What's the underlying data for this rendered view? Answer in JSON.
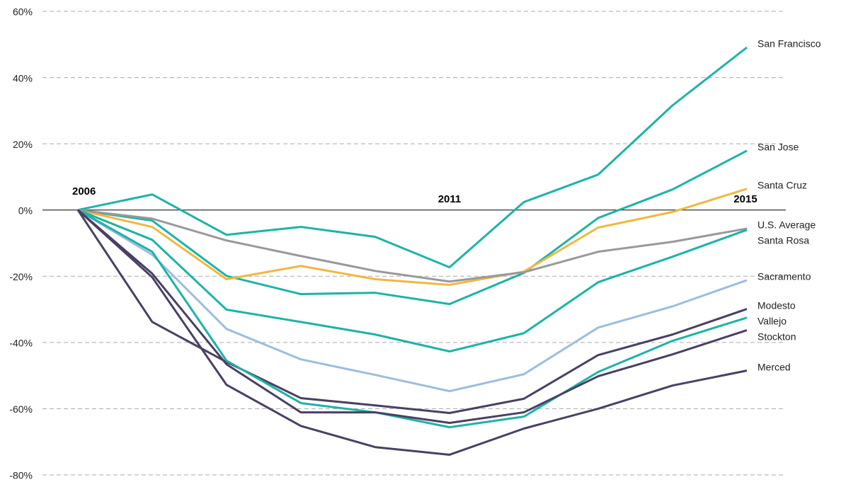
{
  "chart_data": {
    "type": "line",
    "x": [
      2006,
      2007,
      2008,
      2009,
      2010,
      2011,
      2012,
      2013,
      2014,
      2015
    ],
    "xlim": [
      2006,
      2015
    ],
    "xticks": [
      2006,
      2011,
      2015
    ],
    "ylim": [
      -80,
      60
    ],
    "yticks": [
      {
        "value": -80,
        "label": "-80%"
      },
      {
        "value": -60,
        "label": "-60%"
      },
      {
        "value": -40,
        "label": "-40%"
      },
      {
        "value": -20,
        "label": "-20%"
      },
      {
        "value": 0,
        "label": "0%"
      },
      {
        "value": 20,
        "label": "20%"
      },
      {
        "value": 40,
        "label": "40%"
      },
      {
        "value": 60,
        "label": "60%"
      }
    ],
    "grid": true,
    "series": [
      {
        "name": "San Francisco",
        "color": "#1db3a6",
        "values": [
          0,
          4.7,
          -7.5,
          -5.1,
          -8.1,
          -17.3,
          2.4,
          10.7,
          31.6,
          49.1
        ]
      },
      {
        "name": "San Jose",
        "color": "#1db3a6",
        "values": [
          0,
          -3.2,
          -19.9,
          -25.4,
          -25,
          -28.4,
          -19,
          -2.4,
          6.2,
          17.9
        ]
      },
      {
        "name": "Santa Cruz",
        "color": "#f0b840",
        "values": [
          0,
          -5.1,
          -20.9,
          -16.9,
          -20.9,
          -22.6,
          -18.6,
          -5.3,
          -0.6,
          6.4
        ]
      },
      {
        "name": "U.S. Average",
        "color": "#999999",
        "values": [
          0,
          -2.6,
          -9.2,
          -13.9,
          -18.4,
          -21.6,
          -18.8,
          -12.6,
          -9.6,
          -5.6
        ]
      },
      {
        "name": "Santa Rosa",
        "color": "#1db3a6",
        "values": [
          0,
          -9,
          -30.1,
          -33.8,
          -37.6,
          -42.7,
          -37.2,
          -21.8,
          -14.1,
          -6
        ]
      },
      {
        "name": "Sacramento",
        "color": "#9dbde0",
        "values": [
          0,
          -13.5,
          -35.9,
          -45.1,
          -49.8,
          -54.7,
          -49.6,
          -35.5,
          -29.1,
          -21.2
        ]
      },
      {
        "name": "Modesto",
        "color": "#4a3f63",
        "values": [
          0,
          -33.8,
          -45.9,
          -56.8,
          -59,
          -61.3,
          -57,
          -43.8,
          -37.6,
          -29.9
        ]
      },
      {
        "name": "Vallejo",
        "color": "#1db3a6",
        "values": [
          0,
          -12.6,
          -45.5,
          -58.3,
          -61.1,
          -65.6,
          -62.4,
          -48.9,
          -39.5,
          -32.5
        ]
      },
      {
        "name": "Stockton",
        "color": "#4a3f63",
        "values": [
          0,
          -19.2,
          -46.6,
          -61.1,
          -61.1,
          -64.3,
          -61.1,
          -50.2,
          -43.6,
          -36.3
        ]
      },
      {
        "name": "Merced",
        "color": "#4a3f63",
        "values": [
          0,
          -20.3,
          -52.8,
          -65.2,
          -71.6,
          -73.9,
          -66,
          -60,
          -53,
          -48.5
        ]
      }
    ]
  }
}
